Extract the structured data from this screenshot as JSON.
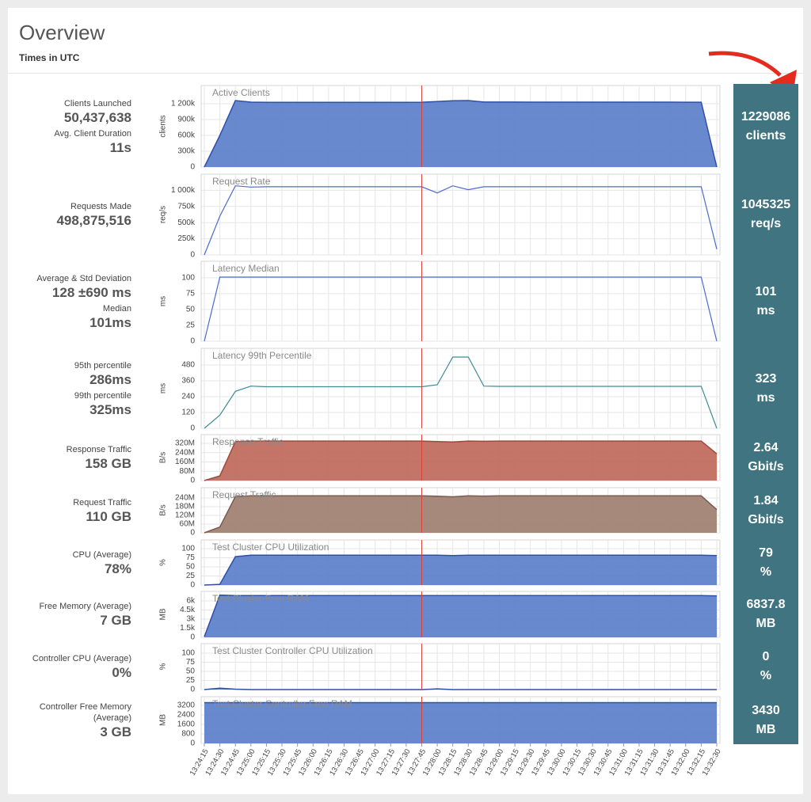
{
  "header": {
    "title": "Overview",
    "subtitle": "Times in UTC"
  },
  "chart_data": {
    "type": "panels",
    "marker": "13:27:45",
    "marker_color": "#d9413a",
    "grid": true,
    "categories": [
      "13:24:15",
      "13:24:30",
      "13:24:45",
      "13:25:00",
      "13:25:15",
      "13:25:30",
      "13:25:45",
      "13:26:00",
      "13:26:15",
      "13:26:30",
      "13:26:45",
      "13:27:00",
      "13:27:15",
      "13:27:30",
      "13:27:45",
      "13:28:00",
      "13:28:15",
      "13:28:30",
      "13:28:45",
      "13:29:00",
      "13:29:15",
      "13:29:30",
      "13:29:45",
      "13:30:00",
      "13:30:15",
      "13:30:30",
      "13:30:45",
      "13:31:00",
      "13:31:15",
      "13:31:30",
      "13:31:45",
      "13:32:00",
      "13:32:15",
      "13:32:30"
    ],
    "panels": [
      {
        "type": "area",
        "title": "Active Clients",
        "y_label": "clients",
        "color": "#5c7fcb",
        "line_color": "#2f4ea6",
        "ylim": [
          0,
          1545000
        ],
        "yticks": [
          0,
          {
            "value": 300000,
            "label": "300k"
          },
          {
            "value": 600000,
            "label": "600k"
          },
          {
            "value": 900000,
            "label": "900k"
          },
          {
            "value": 1200000,
            "label": "1 200k"
          }
        ],
        "values": [
          0,
          600000,
          1260000,
          1230000,
          1225000,
          1225000,
          1225000,
          1225000,
          1225000,
          1225000,
          1225000,
          1225000,
          1225000,
          1225000,
          1228000,
          1240000,
          1255000,
          1260000,
          1232000,
          1232000,
          1232000,
          1230000,
          1230000,
          1230000,
          1230000,
          1230000,
          1230000,
          1230000,
          1230000,
          1230000,
          1230000,
          1228000,
          1228000,
          0
        ],
        "stats": [
          {
            "label": "Clients Launched",
            "value": "50,437,638"
          },
          {
            "label": "Avg. Client Duration",
            "value": "11s"
          }
        ],
        "current": "1229086",
        "current_unit": "clients"
      },
      {
        "type": "line",
        "title": "Request Rate",
        "y_label": "req/s",
        "color": "#4a6ccc",
        "ylim": [
          0,
          1250000
        ],
        "yticks": [
          0,
          {
            "value": 250000,
            "label": "250k"
          },
          {
            "value": 500000,
            "label": "500k"
          },
          {
            "value": 750000,
            "label": "750k"
          },
          {
            "value": 1000000,
            "label": "1 000k"
          }
        ],
        "values": [
          0,
          600000,
          1070000,
          1050000,
          1055000,
          1055000,
          1055000,
          1055000,
          1055000,
          1055000,
          1055000,
          1055000,
          1055000,
          1055000,
          1055000,
          960000,
          1070000,
          1010000,
          1055000,
          1055000,
          1055000,
          1055000,
          1055000,
          1055000,
          1055000,
          1055000,
          1055000,
          1055000,
          1055000,
          1055000,
          1055000,
          1055000,
          1055000,
          90000
        ],
        "stats": [
          {
            "label": "Requests Made",
            "value": "498,875,516"
          }
        ],
        "current": "1045325",
        "current_unit": "req/s"
      },
      {
        "type": "line",
        "title": "Latency Median",
        "y_label": "ms",
        "color": "#4a6ccc",
        "ylim": [
          0,
          126
        ],
        "yticks": [
          0,
          25,
          50,
          75,
          100
        ],
        "values": [
          0,
          101,
          101,
          101,
          101,
          101,
          101,
          101,
          101,
          101,
          101,
          101,
          101,
          101,
          101,
          101,
          101,
          101,
          101,
          101,
          101,
          101,
          101,
          101,
          101,
          101,
          101,
          101,
          101,
          101,
          101,
          101,
          101,
          0
        ],
        "stats": [
          {
            "label": "Average & Std Deviation",
            "value": "128 ±690 ms"
          },
          {
            "label": "Median",
            "value": "101ms"
          }
        ],
        "current": "101",
        "current_unit": "ms"
      },
      {
        "type": "line",
        "title": "Latency 99th Percentile",
        "y_label": "ms",
        "color": "#3d8a96",
        "ylim": [
          0,
          606
        ],
        "yticks": [
          0,
          120,
          240,
          360,
          480
        ],
        "values": [
          0,
          100,
          280,
          320,
          315,
          315,
          315,
          315,
          315,
          315,
          315,
          315,
          315,
          315,
          315,
          330,
          540,
          540,
          320,
          318,
          318,
          318,
          318,
          318,
          318,
          318,
          318,
          318,
          318,
          318,
          318,
          318,
          318,
          0
        ],
        "stats": [
          {
            "label": "95th percentile",
            "value": "286ms"
          },
          {
            "label": "99th percentile",
            "value": "325ms"
          }
        ],
        "current": "323",
        "current_unit": "ms"
      },
      {
        "type": "area",
        "title": "Response Traffic",
        "y_label": "B/s",
        "color": "#c0695a",
        "line_color": "#9b4a3e",
        "ylim": [
          0,
          395000000
        ],
        "yticks": [
          0,
          {
            "value": 80000000,
            "label": "80M"
          },
          {
            "value": 160000000,
            "label": "160M"
          },
          {
            "value": 240000000,
            "label": "240M"
          },
          {
            "value": 320000000,
            "label": "320M"
          }
        ],
        "values": [
          0,
          40000000,
          335000000,
          340000000,
          340000000,
          340000000,
          340000000,
          340000000,
          340000000,
          340000000,
          340000000,
          340000000,
          340000000,
          340000000,
          340000000,
          335000000,
          332000000,
          340000000,
          338000000,
          340000000,
          340000000,
          340000000,
          340000000,
          340000000,
          340000000,
          340000000,
          340000000,
          340000000,
          340000000,
          340000000,
          340000000,
          340000000,
          340000000,
          230000000
        ],
        "stats": [
          {
            "label": "Response Traffic",
            "value": "158 GB"
          }
        ],
        "current": "2.64",
        "current_unit": "Gbit/s"
      },
      {
        "type": "area",
        "title": "Request Traffic",
        "y_label": "B/s",
        "color": "#a07f70",
        "line_color": "#7a5a4c",
        "ylim": [
          0,
          311000000
        ],
        "yticks": [
          0,
          {
            "value": 60000000,
            "label": "60M"
          },
          {
            "value": 120000000,
            "label": "120M"
          },
          {
            "value": 180000000,
            "label": "180M"
          },
          {
            "value": 240000000,
            "label": "240M"
          }
        ],
        "values": [
          0,
          40000000,
          250000000,
          255000000,
          255000000,
          255000000,
          255000000,
          255000000,
          255000000,
          255000000,
          255000000,
          255000000,
          255000000,
          255000000,
          255000000,
          252000000,
          248000000,
          255000000,
          253000000,
          255000000,
          255000000,
          255000000,
          255000000,
          255000000,
          255000000,
          255000000,
          255000000,
          255000000,
          255000000,
          255000000,
          255000000,
          255000000,
          255000000,
          160000000
        ],
        "stats": [
          {
            "label": "Request Traffic",
            "value": "110 GB"
          }
        ],
        "current": "1.84",
        "current_unit": "Gbit/s"
      },
      {
        "type": "area",
        "title": "Test Cluster CPU Utilization",
        "y_label": "%",
        "color": "#5c7fcb",
        "line_color": "#2f4ea6",
        "ylim": [
          0,
          124
        ],
        "yticks": [
          0,
          25,
          50,
          75,
          100
        ],
        "values": [
          0,
          2,
          78,
          82,
          82,
          82,
          82,
          82,
          82,
          82,
          82,
          82,
          82,
          82,
          82,
          82,
          81,
          82,
          82,
          82,
          82,
          82,
          82,
          82,
          82,
          82,
          82,
          82,
          82,
          82,
          82,
          82,
          82,
          81
        ],
        "stats": [
          {
            "label": "CPU (Average)",
            "value": "78%"
          }
        ],
        "current": "79",
        "current_unit": "%"
      },
      {
        "type": "area",
        "title": "Test Cluster Free RAM",
        "y_label": "MB",
        "color": "#5c7fcb",
        "line_color": "#2f4ea6",
        "ylim": [
          0,
          7565
        ],
        "yticks": [
          0,
          {
            "value": 1500,
            "label": "1.5k"
          },
          {
            "value": 3000,
            "label": "3k"
          },
          {
            "value": 4500,
            "label": "4.5k"
          },
          {
            "value": 6000,
            "label": "6k"
          }
        ],
        "values": [
          100,
          6950,
          6880,
          6880,
          6880,
          6880,
          6880,
          6880,
          6880,
          6880,
          6880,
          6880,
          6880,
          6880,
          6880,
          6880,
          6880,
          6880,
          6880,
          6880,
          6880,
          6880,
          6880,
          6880,
          6880,
          6880,
          6880,
          6880,
          6880,
          6880,
          6880,
          6880,
          6880,
          6840
        ],
        "stats": [
          {
            "label": "Free Memory (Average)",
            "value": "7 GB"
          }
        ],
        "current": "6837.8",
        "current_unit": "MB"
      },
      {
        "type": "area",
        "title": "Test Cluster Controller CPU Utilization",
        "y_label": "%",
        "color": "#5c7fcb",
        "line_color": "#2f4ea6",
        "ylim": [
          0,
          126
        ],
        "yticks": [
          0,
          25,
          50,
          75,
          100
        ],
        "values": [
          0,
          4,
          1,
          0,
          0,
          0,
          0,
          0,
          0,
          0,
          0,
          0,
          0,
          0,
          0,
          2,
          0,
          0,
          0,
          0,
          0,
          0,
          0,
          0,
          0,
          0,
          0,
          0,
          0,
          0,
          0,
          0,
          0,
          0
        ],
        "stats": [
          {
            "label": "Controller CPU (Average)",
            "value": "0%"
          }
        ],
        "current": "0",
        "current_unit": "%"
      },
      {
        "type": "area",
        "title": "Test Cluster Controller Free RAM",
        "y_label": "MB",
        "color": "#5c7fcb",
        "line_color": "#2f4ea6",
        "ylim": [
          0,
          3933
        ],
        "yticks": [
          0,
          800,
          1600,
          2400,
          3200
        ],
        "values": [
          3430,
          3430,
          3430,
          3430,
          3430,
          3430,
          3430,
          3430,
          3430,
          3430,
          3430,
          3430,
          3430,
          3430,
          3430,
          3430,
          3430,
          3430,
          3430,
          3430,
          3430,
          3430,
          3430,
          3430,
          3430,
          3430,
          3430,
          3430,
          3430,
          3430,
          3430,
          3430,
          3430,
          3430
        ],
        "stats": [
          {
            "label": "Controller Free Memory (Average)",
            "value": "3 GB"
          }
        ],
        "current": "3430",
        "current_unit": "MB"
      }
    ]
  }
}
